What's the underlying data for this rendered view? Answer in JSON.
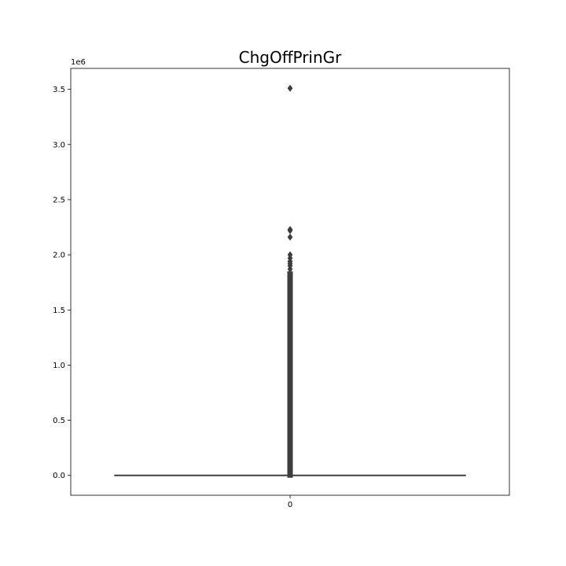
{
  "chart_data": {
    "type": "box",
    "title": "ChgOffPrinGr",
    "xlabel": "",
    "ylabel": "",
    "y_offset_label": "1e6",
    "categories": [
      "0"
    ],
    "y_ticks": [
      0.0,
      0.5,
      1.0,
      1.5,
      2.0,
      2.5,
      3.0,
      3.5
    ],
    "y_tick_labels": [
      "0.0",
      "0.5",
      "1.0",
      "1.5",
      "2.0",
      "2.5",
      "3.0",
      "3.5"
    ],
    "ylim": [
      -0.18,
      3.69
    ],
    "y_scale_factor": 1000000,
    "grid": false,
    "box": {
      "category": "0",
      "min": 0,
      "q1": 0,
      "median": 0,
      "q3": 0,
      "max": 0
    },
    "outlier_range": [
      0.0,
      1.85
    ],
    "outliers": [
      1.87,
      1.9,
      1.92,
      1.94,
      1.97,
      2.0,
      2.16,
      2.22,
      2.23,
      3.51
    ],
    "colors": {
      "box": "#3d3d3d",
      "outlier": "#3d3d3d",
      "axis": "#000000"
    }
  }
}
